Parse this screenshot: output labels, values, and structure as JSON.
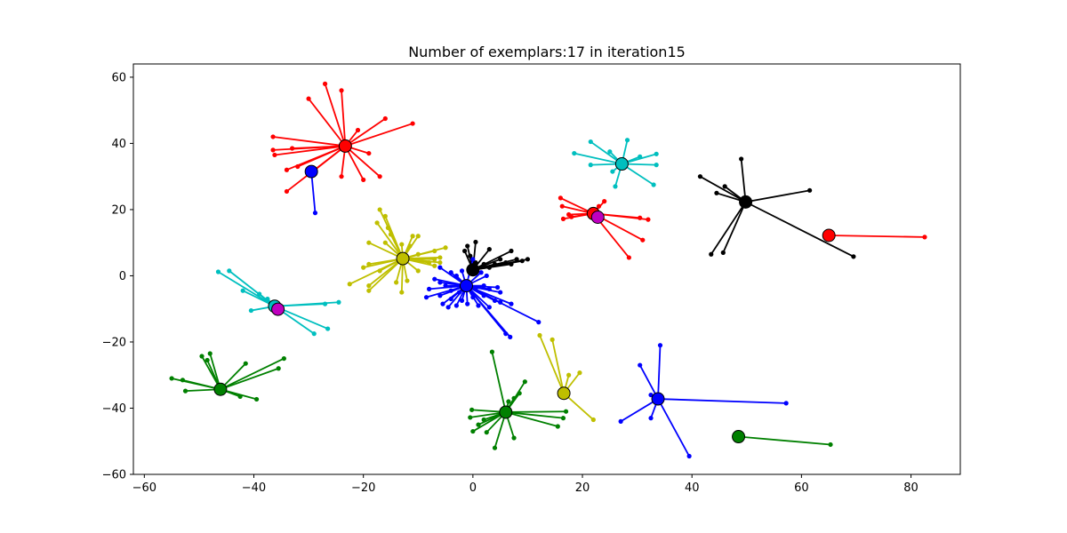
{
  "chart_data": {
    "type": "scatter",
    "title": "Number of exemplars:17 in iteration15",
    "xlabel": "",
    "ylabel": "",
    "xlim": [
      -62,
      89
    ],
    "ylim": [
      -60,
      64
    ],
    "xticks": [
      -60,
      -40,
      -20,
      0,
      20,
      40,
      60,
      80
    ],
    "yticks": [
      -60,
      -40,
      -20,
      0,
      20,
      40,
      60
    ],
    "grid": false,
    "clusters": [
      {
        "color": "#ff0000",
        "exemplar": [
          -23.3,
          39.2
        ],
        "members": [
          [
            -27,
            58
          ],
          [
            -24,
            56
          ],
          [
            -30,
            53.5
          ],
          [
            -16,
            47.5
          ],
          [
            -11,
            46
          ],
          [
            -21,
            44
          ],
          [
            -36.5,
            42
          ],
          [
            -33,
            38.5
          ],
          [
            -36.5,
            38
          ],
          [
            -36.2,
            36.5
          ],
          [
            -19,
            37
          ],
          [
            -34,
            32
          ],
          [
            -32,
            33
          ],
          [
            -30,
            30.5
          ],
          [
            -24,
            30
          ],
          [
            -20,
            29
          ],
          [
            -17,
            30
          ],
          [
            -34,
            25.5
          ]
        ]
      },
      {
        "color": "#0000ff",
        "exemplar": [
          -29.5,
          31.5
        ],
        "members": [
          [
            -28.8,
            19
          ]
        ]
      },
      {
        "color": "#00bfbf",
        "exemplar": [
          27.2,
          33.8
        ],
        "members": [
          [
            21.5,
            40.5
          ],
          [
            25,
            37.5
          ],
          [
            28.2,
            41
          ],
          [
            33.5,
            36.8
          ],
          [
            18.5,
            37
          ],
          [
            30.5,
            36
          ],
          [
            21.5,
            33.5
          ],
          [
            33.5,
            33.5
          ],
          [
            25.5,
            31.5
          ],
          [
            33,
            27.5
          ],
          [
            26,
            27
          ]
        ]
      },
      {
        "color": "#000000",
        "exemplar": [
          49.8,
          22.3
        ],
        "members": [
          [
            49,
            35.3
          ],
          [
            41.5,
            30
          ],
          [
            46,
            27
          ],
          [
            44.5,
            25
          ],
          [
            61.5,
            25.8
          ],
          [
            43.5,
            6.5
          ],
          [
            45.7,
            7
          ],
          [
            69.5,
            5.8
          ]
        ]
      },
      {
        "color": "#ff0000",
        "exemplar": [
          22,
          18.8
        ],
        "members": [
          [
            16,
            23.5
          ],
          [
            16.3,
            21
          ],
          [
            24,
            22.5
          ],
          [
            23,
            21
          ],
          [
            17.5,
            18.5
          ],
          [
            18,
            17.8
          ],
          [
            16.5,
            17.2
          ],
          [
            30.5,
            17.5
          ],
          [
            32,
            17
          ],
          [
            31,
            10.8
          ],
          [
            28.5,
            5.5
          ]
        ]
      },
      {
        "color": "#bf00bf",
        "exemplar": [
          22.8,
          17.7
        ],
        "members": []
      },
      {
        "color": "#ff0000",
        "exemplar": [
          65,
          12.2
        ],
        "members": [
          [
            82.5,
            11.7
          ]
        ]
      },
      {
        "color": "#bfbf00",
        "exemplar": [
          -12.8,
          5.2
        ],
        "members": [
          [
            -17,
            20
          ],
          [
            -16,
            18
          ],
          [
            -17.5,
            16
          ],
          [
            -15.5,
            14.5
          ],
          [
            -15,
            12.5
          ],
          [
            -11,
            12
          ],
          [
            -10,
            12
          ],
          [
            -19,
            10
          ],
          [
            -16,
            10
          ],
          [
            -13,
            9.5
          ],
          [
            -11.5,
            9
          ],
          [
            -5,
            8.5
          ],
          [
            -7,
            7.5
          ],
          [
            -10,
            6.5
          ],
          [
            -6,
            5.5
          ],
          [
            -7,
            5
          ],
          [
            -8,
            4
          ],
          [
            -6,
            4
          ],
          [
            -19,
            3.5
          ],
          [
            -20,
            2.5
          ],
          [
            -17,
            1.5
          ],
          [
            -12,
            -1.5
          ],
          [
            -14,
            -2
          ],
          [
            -19,
            -3
          ],
          [
            -22.5,
            -2.5
          ],
          [
            -13,
            -5
          ],
          [
            -19,
            -4.5
          ],
          [
            -7,
            3
          ],
          [
            -10,
            1.5
          ]
        ]
      },
      {
        "color": "#000000",
        "exemplar": [
          0,
          1.8
        ],
        "members": [
          [
            0.5,
            10.2
          ],
          [
            -1,
            9
          ],
          [
            -1.5,
            7.5
          ],
          [
            3,
            8
          ],
          [
            7,
            7.5
          ],
          [
            -0.5,
            6
          ],
          [
            5,
            5
          ],
          [
            8,
            5
          ],
          [
            10,
            5
          ],
          [
            2,
            3.5
          ],
          [
            4,
            3.5
          ],
          [
            6,
            4
          ],
          [
            7,
            3.5
          ],
          [
            9,
            4.5
          ],
          [
            3,
            2.5
          ],
          [
            0.5,
            4
          ]
        ]
      },
      {
        "color": "#0000ff",
        "exemplar": [
          -1.2,
          -3
        ],
        "members": [
          [
            0,
            5
          ],
          [
            -6,
            2.5
          ],
          [
            -4,
            1
          ],
          [
            -3,
            0
          ],
          [
            -2,
            1.5
          ],
          [
            1.5,
            1
          ],
          [
            2.5,
            0
          ],
          [
            -7,
            -1
          ],
          [
            -6,
            -2
          ],
          [
            -5,
            -3
          ],
          [
            -8,
            -4
          ],
          [
            -4,
            -4.5
          ],
          [
            -2.5,
            -5
          ],
          [
            0.5,
            -4
          ],
          [
            2,
            -3
          ],
          [
            3,
            -4
          ],
          [
            4.5,
            -3.5
          ],
          [
            5,
            -5
          ],
          [
            -8.5,
            -6.5
          ],
          [
            -6,
            -6
          ],
          [
            -4,
            -7
          ],
          [
            -2,
            -7.5
          ],
          [
            0,
            -6.5
          ],
          [
            2,
            -6
          ],
          [
            4,
            -7.5
          ],
          [
            -5.5,
            -8.5
          ],
          [
            -3,
            -9
          ],
          [
            -1,
            -8.5
          ],
          [
            1,
            -9
          ],
          [
            3,
            -9.5
          ],
          [
            5,
            -8
          ],
          [
            7,
            -8.5
          ],
          [
            -4.5,
            -9.5
          ],
          [
            12,
            -14
          ],
          [
            6,
            -17.5
          ],
          [
            6.8,
            -18.5
          ]
        ]
      },
      {
        "color": "#00bfbf",
        "exemplar": [
          -36.2,
          -9.2
        ],
        "members": [
          [
            -46.5,
            1.2
          ],
          [
            -44.5,
            1.5
          ],
          [
            -42,
            -4.5
          ],
          [
            -39,
            -5.5
          ],
          [
            -37.5,
            -7
          ],
          [
            -24.5,
            -8
          ],
          [
            -27,
            -8.5
          ],
          [
            -40.5,
            -10.5
          ],
          [
            -26.5,
            -16
          ],
          [
            -29,
            -17.5
          ]
        ]
      },
      {
        "color": "#bf00bf",
        "exemplar": [
          -35.6,
          -10.1
        ],
        "members": []
      },
      {
        "color": "#008000",
        "exemplar": [
          -46.1,
          -34.3
        ],
        "members": [
          [
            -48,
            -23.5
          ],
          [
            -49.5,
            -24.3
          ],
          [
            -48.5,
            -25.5
          ],
          [
            -34.5,
            -25
          ],
          [
            -41.5,
            -26.5
          ],
          [
            -35.5,
            -28
          ],
          [
            -55,
            -31
          ],
          [
            -53,
            -31.5
          ],
          [
            -52.5,
            -34.8
          ],
          [
            -42.5,
            -36.5
          ],
          [
            -39.5,
            -37.3
          ]
        ]
      },
      {
        "color": "#008000",
        "exemplar": [
          6,
          -41.2
        ],
        "members": [
          [
            3.5,
            -23
          ],
          [
            9.5,
            -32
          ],
          [
            8.5,
            -35.5
          ],
          [
            7.5,
            -37
          ],
          [
            6.5,
            -38
          ],
          [
            -0.2,
            -40.5
          ],
          [
            17,
            -41
          ],
          [
            16.5,
            -43
          ],
          [
            -0.5,
            -42.8
          ],
          [
            2,
            -43.5
          ],
          [
            1,
            -45
          ],
          [
            15.5,
            -45.5
          ],
          [
            0,
            -47
          ],
          [
            2.5,
            -47.3
          ],
          [
            7.5,
            -49
          ],
          [
            4,
            -52
          ]
        ]
      },
      {
        "color": "#bfbf00",
        "exemplar": [
          16.6,
          -35.5
        ],
        "members": [
          [
            12.2,
            -18
          ],
          [
            14.5,
            -19.3
          ],
          [
            17.5,
            -30
          ],
          [
            19.5,
            -29.3
          ],
          [
            22,
            -43.5
          ]
        ]
      },
      {
        "color": "#0000ff",
        "exemplar": [
          33.8,
          -37.2
        ],
        "members": [
          [
            34.2,
            -21
          ],
          [
            30.5,
            -27
          ],
          [
            32.5,
            -36
          ],
          [
            32.5,
            -43
          ],
          [
            57.2,
            -38.5
          ],
          [
            27,
            -44
          ],
          [
            39.5,
            -54.5
          ]
        ]
      },
      {
        "color": "#008000",
        "exemplar": [
          48.5,
          -48.6
        ],
        "members": [
          [
            65.3,
            -51
          ]
        ]
      }
    ]
  }
}
